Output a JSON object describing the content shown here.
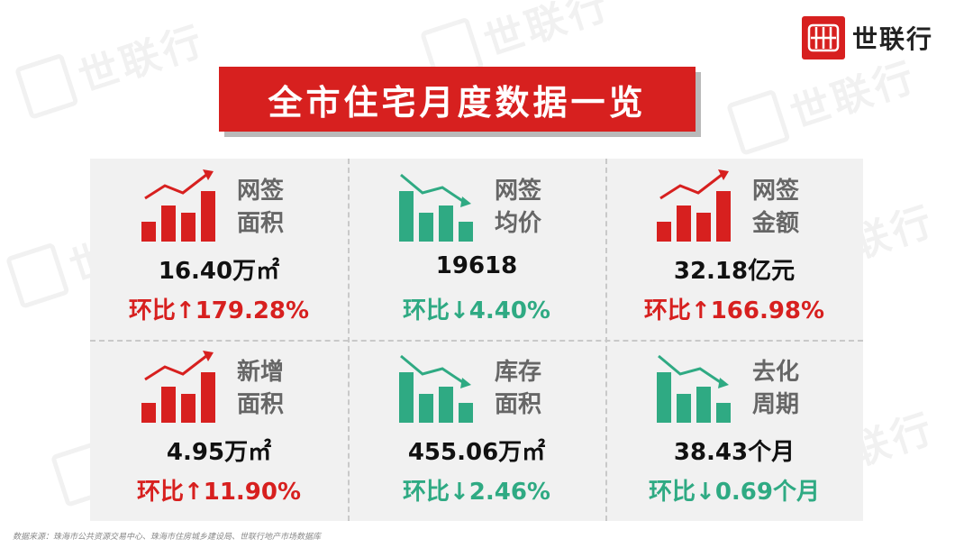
{
  "brand": {
    "name": "世联行"
  },
  "title": "全市住宅月度数据一览",
  "colors": {
    "accent_red": "#d7201f",
    "accent_green": "#2faa83",
    "panel_bg": "#f1f1f1"
  },
  "cards": [
    {
      "label_line1": "网签",
      "label_line2": "面积",
      "value": "16.40万㎡",
      "change": "环比↑179.28%",
      "trend": "up",
      "icon": "bar-chart-up-icon"
    },
    {
      "label_line1": "网签",
      "label_line2": "均价",
      "value": "19618",
      "change": "环比↓4.40%",
      "trend": "down",
      "icon": "bar-chart-down-icon"
    },
    {
      "label_line1": "网签",
      "label_line2": "金额",
      "value": "32.18亿元",
      "change": "环比↑166.98%",
      "trend": "up",
      "icon": "bar-chart-up-icon"
    },
    {
      "label_line1": "新增",
      "label_line2": "面积",
      "value": "4.95万㎡",
      "change": "环比↑11.90%",
      "trend": "up",
      "icon": "bar-chart-up-icon"
    },
    {
      "label_line1": "库存",
      "label_line2": "面积",
      "value": "455.06万㎡",
      "change": "环比↓2.46%",
      "trend": "down",
      "icon": "bar-chart-down-icon"
    },
    {
      "label_line1": "去化",
      "label_line2": "周期",
      "value": "38.43个月",
      "change": "环比↓0.69个月",
      "trend": "down",
      "icon": "bar-chart-down-icon"
    }
  ],
  "source": "数据来源：珠海市公共资源交易中心、珠海市住房城乡建设局、世联行地产市场数据库"
}
